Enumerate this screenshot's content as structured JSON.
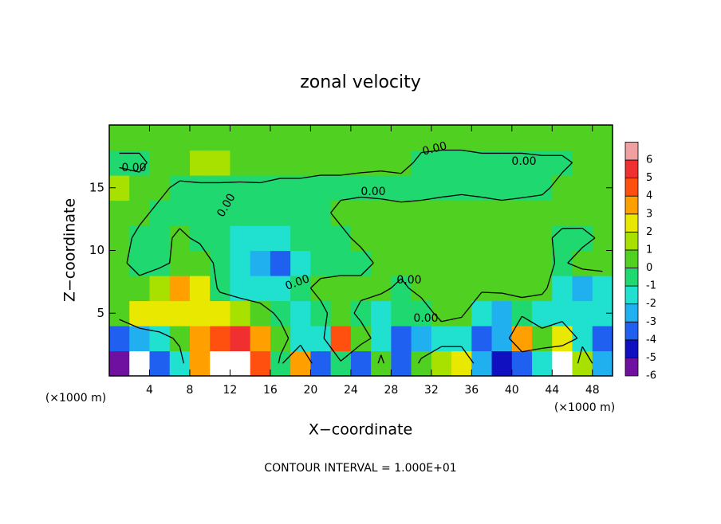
{
  "chart_data": {
    "type": "contour",
    "title": "zonal velocity",
    "x_label": "X−coordinate",
    "y_label": "Z−coordinate",
    "x_unit": "(×1000 m)",
    "y_unit": "(×1000 m)",
    "footer": "CONTOUR INTERVAL = 1.000E+01",
    "xlim": [
      0,
      50
    ],
    "ylim": [
      0,
      20
    ],
    "xticks": [
      4,
      8,
      12,
      16,
      20,
      24,
      28,
      32,
      36,
      40,
      44,
      48
    ],
    "yticks": [
      5,
      10,
      15
    ],
    "x": [
      1,
      3,
      5,
      7,
      9,
      11,
      13,
      15,
      17,
      19,
      21,
      23,
      25,
      27,
      29,
      31,
      33,
      35,
      37,
      39,
      41,
      43,
      45,
      47,
      49
    ],
    "y": [
      1,
      3,
      5,
      7,
      9,
      11,
      13,
      15,
      17,
      19
    ],
    "z": [
      [
        -5,
        -7,
        -3,
        -1,
        4,
        7,
        8,
        5,
        -0.5,
        4,
        -3,
        -0.5,
        -3,
        0.5,
        -3,
        0.5,
        2,
        3,
        -2,
        -4,
        -3,
        -1.5,
        -7,
        2,
        -2
      ],
      [
        -3,
        -2,
        -1,
        0.5,
        4,
        5,
        6,
        4,
        1,
        -1.5,
        -1,
        5,
        1,
        -1,
        -3,
        -2,
        -1,
        -1.5,
        -3.5,
        -2,
        3.5,
        1,
        3,
        -1,
        -3
      ],
      [
        1,
        3,
        3,
        2.5,
        3,
        2.5,
        1.5,
        1,
        -0.5,
        -1,
        -0.5,
        1,
        -0.5,
        -1,
        -0.5,
        -0.8,
        0.5,
        0.3,
        -1.5,
        -2,
        -0.5,
        -1.5,
        -1.5,
        -1,
        -1.5
      ],
      [
        0.5,
        0.5,
        2,
        3.5,
        3,
        -0.5,
        -1,
        -1.5,
        -1,
        -0.5,
        0.5,
        0.3,
        0.5,
        0.3,
        -0.3,
        0.5,
        0.3,
        0.3,
        0.3,
        0.5,
        0.3,
        0.5,
        -1.5,
        -2.5,
        -1
      ],
      [
        0.3,
        -0.5,
        -0.5,
        0.5,
        1,
        -0.5,
        -1,
        -2,
        -3,
        -1.5,
        -0.8,
        -0.3,
        -0.5,
        0.3,
        0.5,
        0.3,
        0.5,
        0.8,
        0.5,
        0.3,
        0.5,
        0.5,
        -0.3,
        0.8,
        0.5
      ],
      [
        0.5,
        -0.3,
        -0.5,
        0.3,
        -0.3,
        -0.8,
        -1,
        -1.2,
        -1.5,
        -0.8,
        -0.5,
        -0.3,
        0.3,
        0.3,
        0.5,
        0.3,
        0.3,
        0.3,
        0.3,
        0.5,
        0.3,
        0.3,
        -0.3,
        -0.5,
        0.3
      ],
      [
        0.5,
        0.3,
        -0.3,
        -0.5,
        -0.5,
        -0.5,
        -0.8,
        -0.5,
        -0.3,
        -0.3,
        -0.3,
        0.3,
        0.5,
        0.5,
        0.3,
        0.3,
        0.5,
        0.8,
        0.5,
        0.3,
        0.3,
        0.5,
        0.5,
        0.8,
        1
      ],
      [
        1.2,
        0.5,
        0.3,
        -0.3,
        -0.3,
        -0.3,
        -0.3,
        -0.2,
        -0.3,
        -0.3,
        -0.3,
        -0.3,
        -0.3,
        -0.4,
        -0.4,
        -0.3,
        -0.3,
        -0.3,
        -0.3,
        -0.3,
        -0.2,
        -0.2,
        0.3,
        0.5,
        0.8
      ],
      [
        -0.3,
        -0.3,
        0.5,
        0.8,
        1.2,
        1.2,
        1,
        0.8,
        0.5,
        0.5,
        0.3,
        0.3,
        0.2,
        0.2,
        0.3,
        -0.2,
        -0.3,
        -0.3,
        -0.3,
        -0.3,
        -0.3,
        -0.2,
        -0.2,
        0.2,
        0.5
      ],
      [
        0.5,
        0.5,
        0.5,
        0.5,
        0.8,
        0.8,
        0.8,
        0.5,
        0.3,
        0.3,
        0.5,
        0.5,
        0.3,
        0.3,
        0.3,
        0.3,
        0.3,
        0.3,
        0.5,
        0.5,
        0.5,
        0.5,
        0.5,
        0.5,
        0.5
      ]
    ],
    "levels": [
      -6,
      -5,
      -4,
      -3,
      -2,
      -1,
      0,
      1,
      2,
      3,
      4,
      5,
      6
    ],
    "colors": [
      "#7010a0",
      "#1010c0",
      "#2060f0",
      "#20b0f0",
      "#20e0d0",
      "#20d870",
      "#50d020",
      "#a8e000",
      "#e8e800",
      "#ffa000",
      "#ff5010",
      "#f03030",
      "#f0a0a0"
    ],
    "out_of_range_color": "#ffffff",
    "contour_level": 0,
    "contour_labels": [
      "0.00",
      "0.00",
      "0.00",
      "0.00",
      "0.00",
      "0.00",
      "0.00",
      "0.00"
    ]
  }
}
